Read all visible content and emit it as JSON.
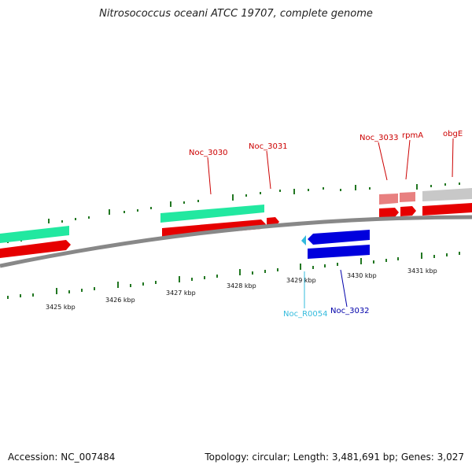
{
  "title": "Nitrosococcus oceani ATCC 19707, complete genome",
  "footer": {
    "accession": "Accession: NC_007484",
    "summary": "Topology: circular; Length: 3,481,691 bp; Genes: 3,027"
  },
  "kbp_labels": [
    "3425 kbp",
    "3426 kbp",
    "3427 kbp",
    "3428 kbp",
    "3429 kbp",
    "3430 kbp",
    "3431 kbp"
  ],
  "gene_labels": [
    {
      "name": "Noc_3030",
      "color": "#cc0000"
    },
    {
      "name": "Noc_3031",
      "color": "#cc0000"
    },
    {
      "name": "Noc_3033",
      "color": "#cc0000"
    },
    {
      "name": "rpmA",
      "color": "#cc0000"
    },
    {
      "name": "obgE",
      "color": "#cc0000"
    },
    {
      "name": "Noc_R0054",
      "color": "#33bbdd"
    },
    {
      "name": "Noc_3032",
      "color": "#0000aa"
    }
  ],
  "colors": {
    "forward_cds": "#e60000",
    "reverse_cds": "#0000dd",
    "forward_gene_green": "#22e8a0",
    "pale_gene": "#e88080",
    "grey_gene": "#c8c8c8",
    "tick": "#227722",
    "backbone": "#888888"
  }
}
